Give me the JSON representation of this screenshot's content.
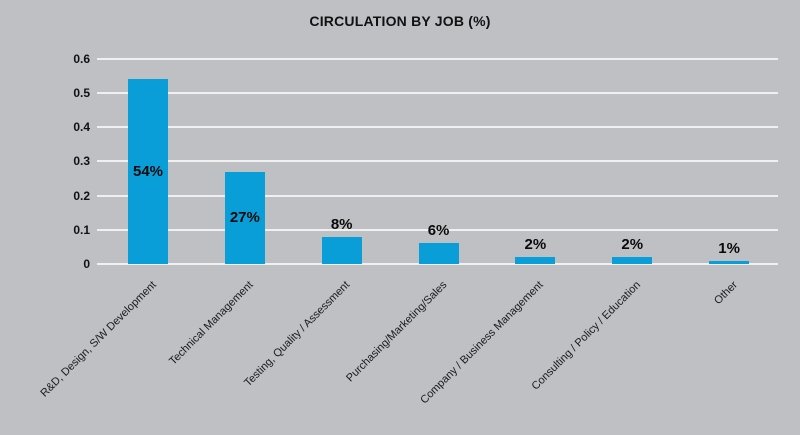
{
  "chart_data": {
    "type": "bar",
    "title": "CIRCULATION BY JOB (%)",
    "categories": [
      "R&D, Design, S/W Development",
      "Technical Management",
      "Testing, Quality / Assessment",
      "Purchasing/Marketing/Sales",
      "Company / Business Management",
      "Consulting / Policy / Education",
      "Other"
    ],
    "values": [
      0.54,
      0.27,
      0.08,
      0.06,
      0.02,
      0.02,
      0.01
    ],
    "value_labels": [
      "54%",
      "27%",
      "8%",
      "6%",
      "2%",
      "2%",
      "1%"
    ],
    "value_label_placement": [
      "inside",
      "inside",
      "above",
      "above",
      "above",
      "above",
      "above"
    ],
    "xlabel": "",
    "ylabel": "",
    "ylim": [
      0,
      0.6
    ],
    "yticks": [
      0,
      0.1,
      0.2,
      0.3,
      0.4,
      0.5,
      0.6
    ],
    "ytick_labels": [
      "0",
      "0.1",
      "0.2",
      "0.3",
      "0.4",
      "0.5",
      "0.6"
    ],
    "grid": true,
    "legend": false,
    "colors": {
      "bar": "#0a9ed9",
      "background": "#bfc0c4",
      "gridline": "#f0f0f2",
      "text": "#111111"
    }
  }
}
